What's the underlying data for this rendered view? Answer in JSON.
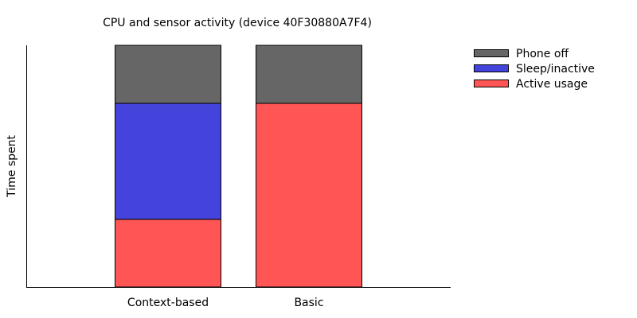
{
  "chart_data": {
    "type": "bar",
    "stacked": true,
    "title": "CPU and sensor activity (device 40F30880A7F4)",
    "xlabel": "",
    "ylabel": "Time spent",
    "ylim": [
      0,
      100
    ],
    "categories": [
      "Context-based",
      "Basic"
    ],
    "series": [
      {
        "name": "Active usage",
        "color": "#ff5555",
        "values": [
          28,
          76
        ]
      },
      {
        "name": "Sleep/inactive",
        "color": "#4444dd",
        "values": [
          48,
          0
        ]
      },
      {
        "name": "Phone off",
        "color": "#666666",
        "values": [
          24,
          24
        ]
      }
    ],
    "legend_order": [
      "Phone off",
      "Sleep/inactive",
      "Active usage"
    ],
    "legend_position": "top-right, outside plot",
    "grid": false
  }
}
